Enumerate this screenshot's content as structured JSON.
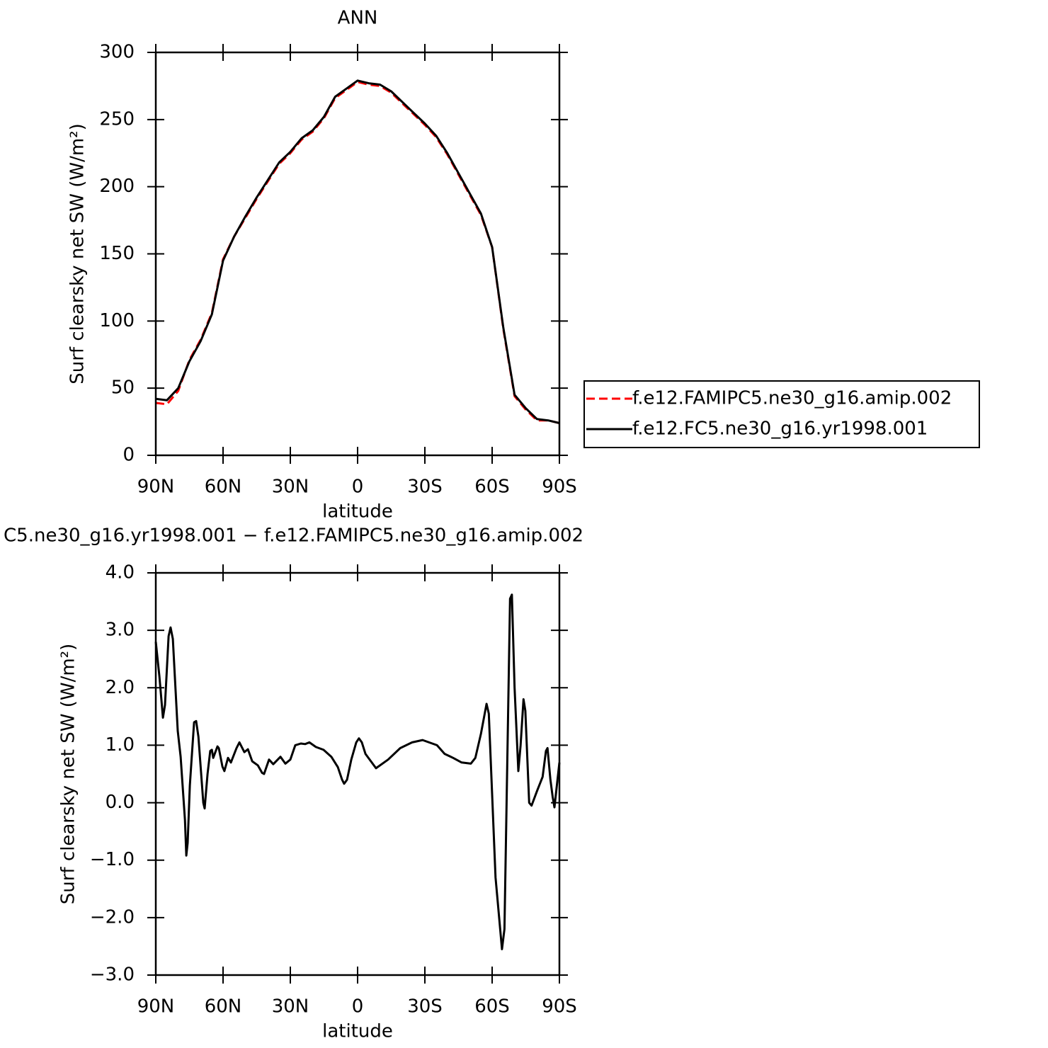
{
  "chart_data": [
    {
      "type": "line",
      "title": "ANN",
      "xlabel": "latitude",
      "ylabel": "Surf clearsky net SW (W/m²)",
      "x": [
        90,
        85,
        80,
        75,
        70,
        65,
        60,
        55,
        50,
        45,
        40,
        35,
        30,
        25,
        20,
        15,
        10,
        5,
        0,
        -5,
        -10,
        -15,
        -20,
        -25,
        -30,
        -35,
        -40,
        -45,
        -50,
        -55,
        -60,
        -65,
        -70,
        -75,
        -80,
        -85,
        -90
      ],
      "xlim": [
        90,
        -90
      ],
      "xticks": [
        {
          "value": 90,
          "label": "90N"
        },
        {
          "value": 60,
          "label": "60N"
        },
        {
          "value": 30,
          "label": "30N"
        },
        0,
        {
          "value": -30,
          "label": "30S"
        },
        {
          "value": -60,
          "label": "60S"
        },
        {
          "value": -90,
          "label": "90S"
        }
      ],
      "ylim": [
        0,
        300
      ],
      "yticks": [
        0,
        50,
        100,
        150,
        200,
        250,
        300
      ],
      "legend": "right",
      "series": [
        {
          "name": "f.e12.FAMIPC5.ne30_g16.amip.002",
          "color": "#ff0000",
          "dash": true,
          "values": [
            39,
            38,
            48,
            71,
            86,
            106,
            146,
            163,
            177,
            191,
            204,
            217,
            225,
            235,
            241,
            251,
            266,
            272,
            278,
            276,
            275,
            270,
            262,
            254,
            246,
            237,
            224,
            209,
            194,
            179,
            155,
            94,
            44,
            34,
            26,
            26,
            24
          ]
        },
        {
          "name": "f.e12.FC5.ne30_g16.yr1998.001",
          "color": "#000000",
          "dash": false,
          "values": [
            42,
            41,
            50,
            70,
            85,
            105,
            145,
            163,
            178,
            192,
            205,
            218,
            226,
            236,
            242,
            252,
            267,
            273,
            279,
            277,
            276,
            271,
            263,
            255,
            247,
            238,
            225,
            210,
            195,
            180,
            155,
            95,
            45,
            35,
            27,
            26,
            24
          ]
        }
      ]
    },
    {
      "type": "line",
      "title": "C5.ne30_g16.yr1998.001 − f.e12.FAMIPC5.ne30_g16.amip.002",
      "xlabel": "latitude",
      "ylabel": "Surf clearsky net SW (W/m²)",
      "x": [
        90,
        88.4,
        86.8,
        85.9,
        84.3,
        83.4,
        82.4,
        81.5,
        80.2,
        78.9,
        77,
        76.4,
        75.8,
        74.8,
        73.6,
        72.9,
        72,
        71,
        68.8,
        68.2,
        66.9,
        65.7,
        65,
        64.4,
        62.5,
        61.9,
        60.3,
        59.4,
        57.8,
        56.5,
        54,
        52.7,
        50.5,
        48.9,
        47,
        44.5,
        42.6,
        41.7,
        39.5,
        37.6,
        34.4,
        32.2,
        30,
        27.8,
        25.3,
        23.4,
        21.5,
        18.6,
        15.2,
        11.7,
        8.8,
        6.9,
        6,
        4.7,
        2.8,
        0.6,
        -0.6,
        -1.9,
        -3.5,
        -8.2,
        -13.6,
        -19,
        -24.3,
        -29,
        -35.4,
        -38.8,
        -42.6,
        -46.4,
        -50.5,
        -52.5,
        -55,
        -57.5,
        -58.5,
        -61.5,
        -64.4,
        -65.5,
        -68,
        -68.8,
        -70,
        -71.7,
        -72.7,
        -74,
        -74.8,
        -76.5,
        -77.6,
        -80,
        -82.5,
        -84,
        -84.7,
        -86,
        -87,
        -87.8,
        -90
      ],
      "xlim": [
        90,
        -90
      ],
      "xticks": [
        {
          "value": 90,
          "label": "90N"
        },
        {
          "value": 60,
          "label": "60N"
        },
        {
          "value": 30,
          "label": "30N"
        },
        0,
        {
          "value": -30,
          "label": "30S"
        },
        {
          "value": -60,
          "label": "60S"
        },
        {
          "value": -90,
          "label": "90S"
        }
      ],
      "ylim": [
        -3,
        4
      ],
      "yticks": [
        {
          "value": -3,
          "label": "−3.0"
        },
        {
          "value": -2,
          "label": "−2.0"
        },
        {
          "value": -1,
          "label": "−1.0"
        },
        {
          "value": 0,
          "label": "0.0"
        },
        {
          "value": 1,
          "label": "1.0"
        },
        {
          "value": 2,
          "label": "2.0"
        },
        {
          "value": 3,
          "label": "3.0"
        },
        {
          "value": 4,
          "label": "4.0"
        }
      ],
      "series": [
        {
          "color": "#000000",
          "dash": false,
          "values": [
            2.8,
            2.2,
            1.48,
            1.7,
            2.9,
            3.05,
            2.85,
            2.2,
            1.25,
            0.8,
            -0.3,
            -0.92,
            -0.7,
            0.3,
            1.0,
            1.4,
            1.42,
            1.15,
            0.0,
            -0.1,
            0.5,
            0.9,
            0.92,
            0.78,
            0.98,
            0.95,
            0.63,
            0.55,
            0.78,
            0.7,
            0.95,
            1.05,
            0.88,
            0.93,
            0.72,
            0.65,
            0.52,
            0.5,
            0.75,
            0.67,
            0.8,
            0.68,
            0.75,
            1.0,
            1.03,
            1.02,
            1.05,
            0.97,
            0.92,
            0.8,
            0.62,
            0.4,
            0.33,
            0.4,
            0.75,
            1.05,
            1.12,
            1.05,
            0.85,
            0.6,
            0.75,
            0.95,
            1.05,
            1.09,
            1.0,
            0.85,
            0.78,
            0.7,
            0.68,
            0.78,
            1.2,
            1.72,
            1.55,
            -1.3,
            -2.55,
            -2.2,
            3.55,
            3.62,
            2.0,
            0.55,
            1.0,
            1.8,
            1.6,
            0.0,
            -0.05,
            0.2,
            0.45,
            0.9,
            0.95,
            0.4,
            0.1,
            -0.08,
            0.7
          ]
        }
      ]
    }
  ]
}
